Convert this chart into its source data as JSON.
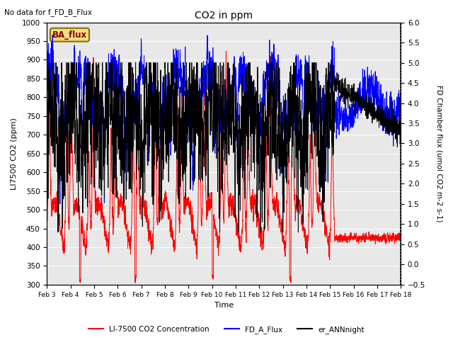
{
  "title": "CO2 in ppm",
  "top_left_text": "No data for f_FD_B_Flux",
  "box_label": "BA_flux",
  "xlabel": "Time",
  "ylabel_left": "LI7500 CO2 (ppm)",
  "ylabel_right": "FD Chamber flux (umol CO2 m-2 s-1)",
  "ylim_left": [
    300,
    1000
  ],
  "ylim_right": [
    -0.5,
    6.0
  ],
  "yticks_left": [
    300,
    350,
    400,
    450,
    500,
    550,
    600,
    650,
    700,
    750,
    800,
    850,
    900,
    950,
    1000
  ],
  "yticks_right": [
    -0.5,
    0.0,
    0.5,
    1.0,
    1.5,
    2.0,
    2.5,
    3.0,
    3.5,
    4.0,
    4.5,
    5.0,
    5.5,
    6.0
  ],
  "xtick_labels": [
    "Feb 3",
    "Feb 4",
    "Feb 5",
    "Feb 6",
    "Feb 7",
    "Feb 8",
    "Feb 9",
    "Feb 10",
    "Feb 11",
    "Feb 12",
    "Feb 13",
    "Feb 14",
    "Feb 15",
    "Feb 16",
    "Feb 17",
    "Feb 18"
  ],
  "color_red": "#ff0000",
  "color_blue": "#0000ff",
  "color_black": "#000000",
  "color_bg_plot": "#e8e8e8",
  "color_box_bg": "#ede080",
  "color_box_border": "#8b7000",
  "legend_labels": [
    "LI-7500 CO2 Concentration",
    "FD_A_Flux",
    "er_ANNnight"
  ],
  "n_days": 16,
  "pts_per_day": 144,
  "seed": 77,
  "figsize": [
    6.4,
    4.8
  ],
  "dpi": 100
}
